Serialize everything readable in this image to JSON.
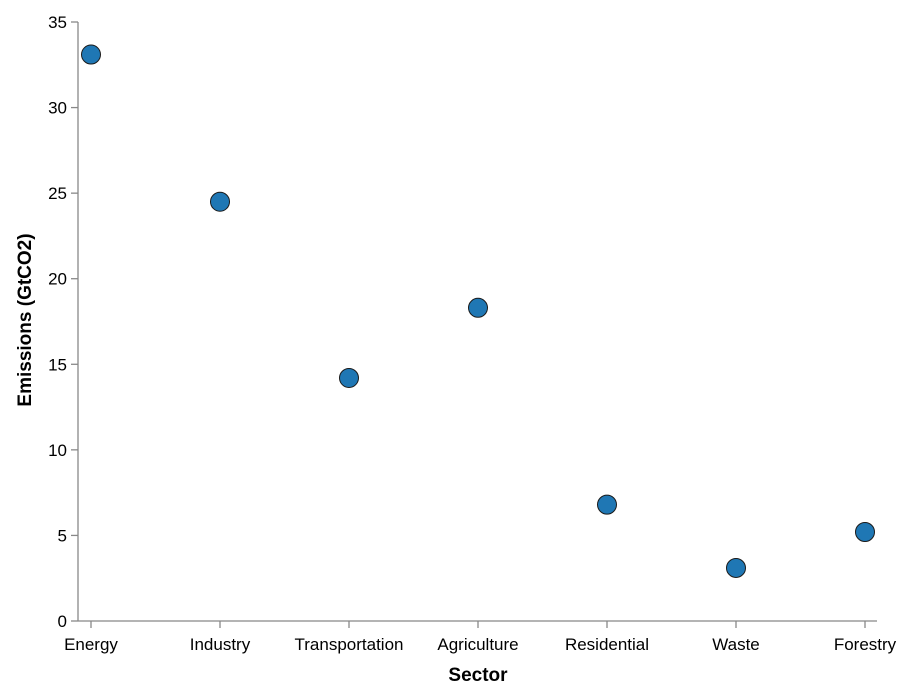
{
  "chart_data": {
    "type": "scatter",
    "categories": [
      "Energy",
      "Industry",
      "Transportation",
      "Agriculture",
      "Residential",
      "Waste",
      "Forestry"
    ],
    "values": [
      33.1,
      24.5,
      14.2,
      18.3,
      6.8,
      3.1,
      5.2
    ],
    "xlabel": "Sector",
    "ylabel": "Emissions (GtCO2)",
    "ylim": [
      0,
      35
    ],
    "yticks": [
      0,
      5,
      10,
      15,
      20,
      25,
      30,
      35
    ],
    "grid": false,
    "legend": "none",
    "colors": {
      "point_fill": "#1f77b4",
      "point_stroke": "#1a1a1a",
      "axis": "#888888",
      "text": "#000000"
    }
  }
}
